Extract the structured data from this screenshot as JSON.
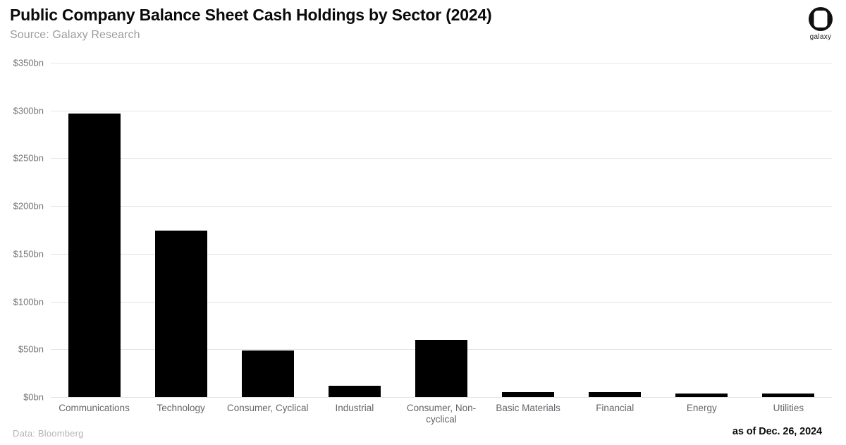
{
  "header": {
    "title": "Public Company Balance Sheet Cash Holdings by Sector (2024)",
    "subtitle": "Source: Galaxy Research"
  },
  "logo": {
    "label": "galaxy"
  },
  "footer": {
    "data_source": "Data: Bloomberg",
    "as_of": "as of Dec. 26, 2024"
  },
  "chart_data": {
    "type": "bar",
    "title": "Public Company Balance Sheet Cash Holdings by Sector (2024)",
    "categories": [
      "Communications",
      "Technology",
      "Consumer, Cyclical",
      "Industrial",
      "Consumer, Non-cyclical",
      "Basic Materials",
      "Financial",
      "Energy",
      "Utilities"
    ],
    "values": [
      297,
      174,
      49,
      12,
      60,
      5,
      5,
      4,
      4
    ],
    "unit": "billion USD",
    "xlabel": "",
    "ylabel": "",
    "ylim": [
      0,
      350
    ],
    "ytick_step": 50,
    "ytick_prefix": "$",
    "ytick_suffix": "bn",
    "grid": "horizontal",
    "gridline_color": "#e4e4e4",
    "bar_color": "#000000",
    "legend": "none"
  }
}
